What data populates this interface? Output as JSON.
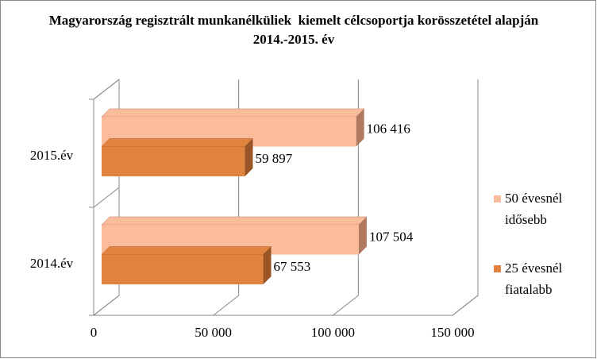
{
  "chart_data": {
    "type": "bar3d_horizontal",
    "title": "Magyarország regisztrált munkanélküliek  kiemelt célcsoportja korösszetétel alapján 2014.-2015. év",
    "categories": [
      "2014.év",
      "2015.év"
    ],
    "series": [
      {
        "name": "50 évesnél idősebb",
        "color": "#fbbc9c",
        "side": "#b07a60",
        "values": [
          107504,
          106416
        ],
        "value_labels": [
          "107 504",
          "106 416"
        ]
      },
      {
        "name": "25 évesnél fiatalabb",
        "color": "#e0843f",
        "side": "#9a5526",
        "values": [
          67553,
          59897
        ],
        "value_labels": [
          "67 553",
          "59 897"
        ]
      }
    ],
    "xlim": [
      0,
      150000
    ],
    "xticks": [
      0,
      {
        "value": 50000,
        "label": "50 000"
      },
      {
        "value": 100000,
        "label": "100 000"
      },
      {
        "value": 150000,
        "label": "150 000"
      }
    ],
    "grid": true,
    "legend": "right"
  }
}
